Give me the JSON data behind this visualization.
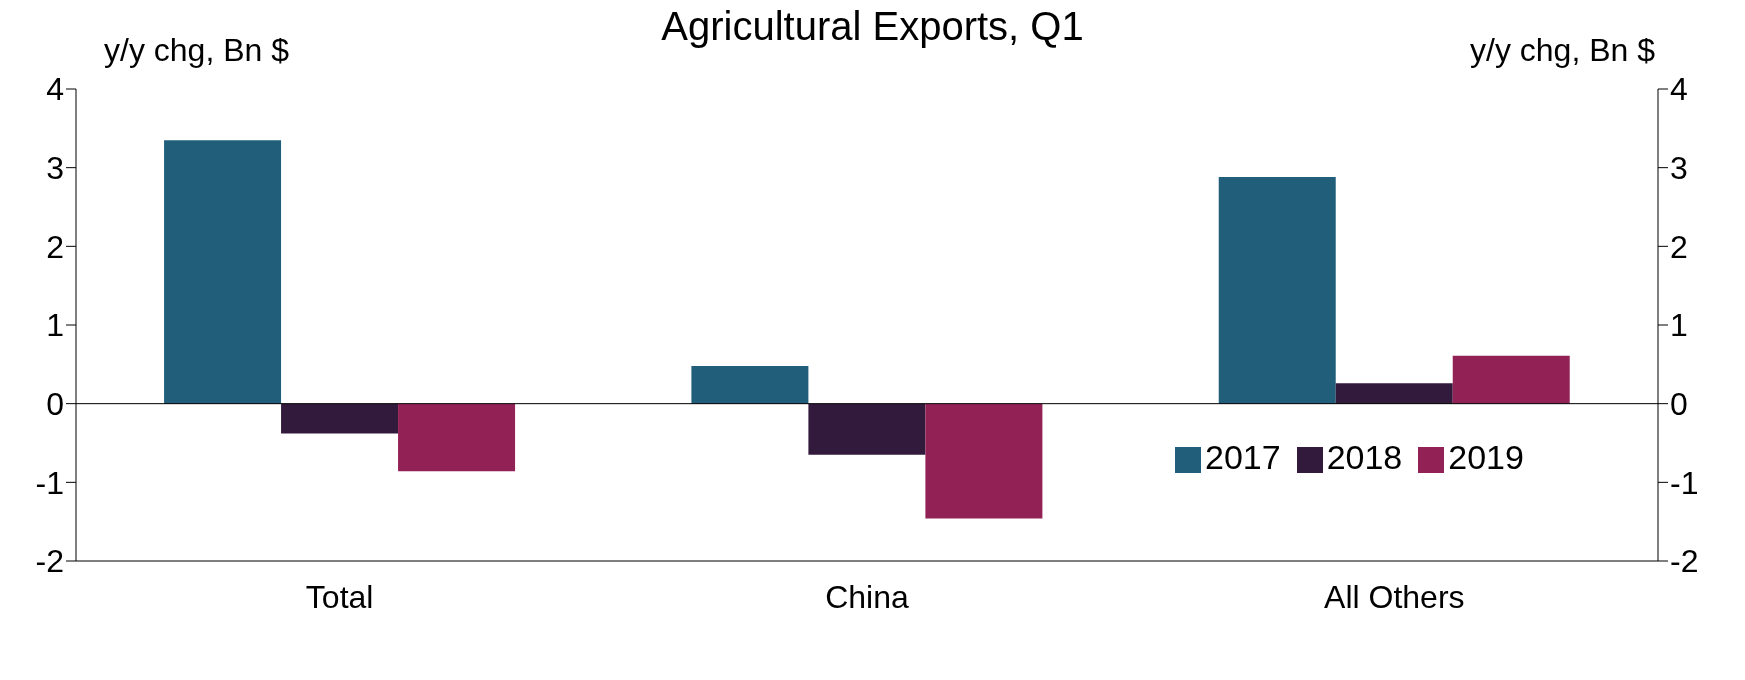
{
  "chart_data": {
    "type": "bar",
    "title": "Agricultural Exports, Q1",
    "ylabel": "y/y chg, Bn $",
    "y2label": "y/y chg, Bn $",
    "categories": [
      "Total",
      "China",
      "All Others"
    ],
    "series": [
      {
        "name": "2017",
        "color": "#215e79",
        "values": [
          3.35,
          0.48,
          2.88
        ]
      },
      {
        "name": "2018",
        "color": "#321a3c",
        "values": [
          -0.38,
          -0.65,
          0.26
        ]
      },
      {
        "name": "2019",
        "color": "#922155",
        "values": [
          -0.86,
          -1.46,
          0.61
        ]
      }
    ],
    "ylim": [
      -2,
      4
    ],
    "yticks": [
      -2,
      -1,
      0,
      1,
      2,
      3,
      4
    ],
    "y2lim": [
      -2,
      4
    ],
    "y2ticks": [
      -2,
      -1,
      0,
      1,
      2,
      3,
      4
    ],
    "legend": "right"
  }
}
